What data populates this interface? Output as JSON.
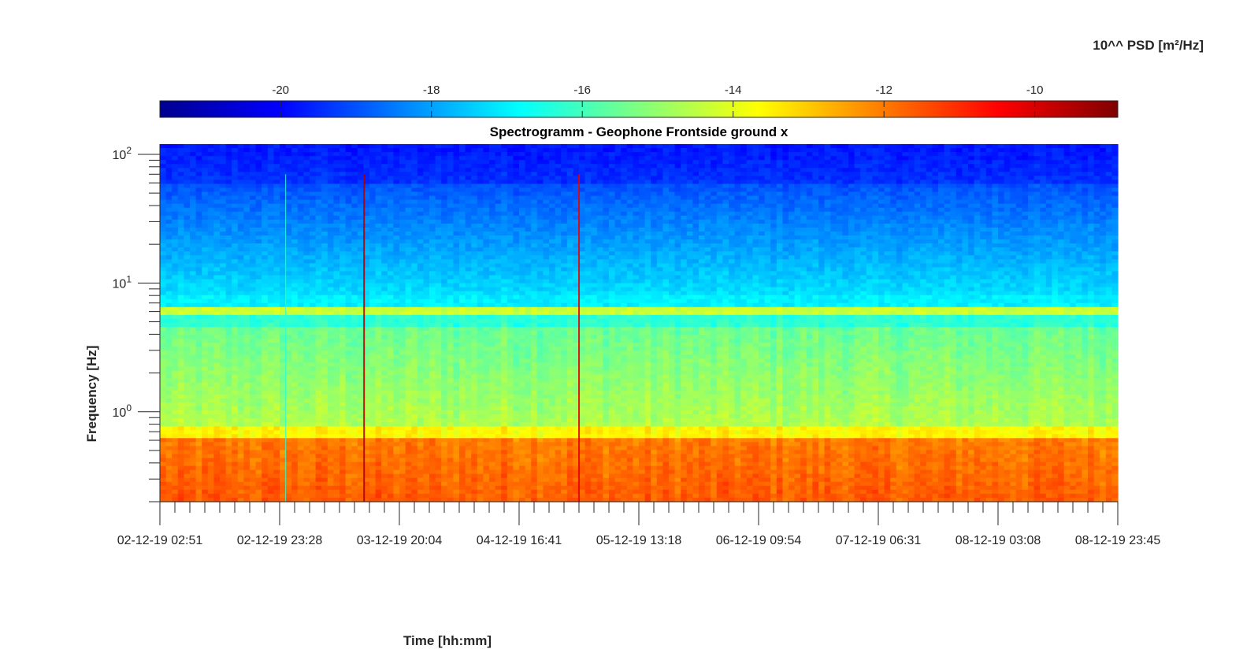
{
  "chart_data": {
    "type": "heatmap",
    "title": "Spectrogramm - Geophone Frontside ground x",
    "xlabel": "Time [hh:mm]",
    "ylabel": "Frequency [Hz]",
    "yscale": "log",
    "ylim": [
      0.2,
      120
    ],
    "y_ticks": [
      {
        "base": "10",
        "exp": "0",
        "value": 1
      },
      {
        "base": "10",
        "exp": "1",
        "value": 10
      },
      {
        "base": "10",
        "exp": "2",
        "value": 100
      }
    ],
    "x_ticks": [
      "02-12-19 02:51",
      "02-12-19 23:28",
      "03-12-19 20:04",
      "04-12-19 16:41",
      "05-12-19 13:18",
      "06-12-19 09:54",
      "07-12-19 06:31",
      "08-12-19 03:08",
      "08-12-19 23:45"
    ],
    "colorbar": {
      "label": "10^^ PSD [m²/Hz]",
      "range": [
        -21.6,
        -8.9
      ],
      "ticks": [
        "-20",
        "-18",
        "-16",
        "-14",
        "-12",
        "-10"
      ],
      "tick_values": [
        -20,
        -18,
        -16,
        -14,
        -12,
        -10
      ],
      "colormap": "jet",
      "position": "top"
    },
    "features": [
      {
        "name": "persistent line",
        "freq_hz": 5.9,
        "level": -14.3
      },
      {
        "name": "transient",
        "time": "03-12-19 14:00",
        "level": -9.5
      },
      {
        "name": "transient",
        "time": "05-12-19 03:00",
        "level": -10.2
      },
      {
        "name": "minor line",
        "time": "03-12-19 00:30",
        "level": -16.3
      }
    ]
  }
}
